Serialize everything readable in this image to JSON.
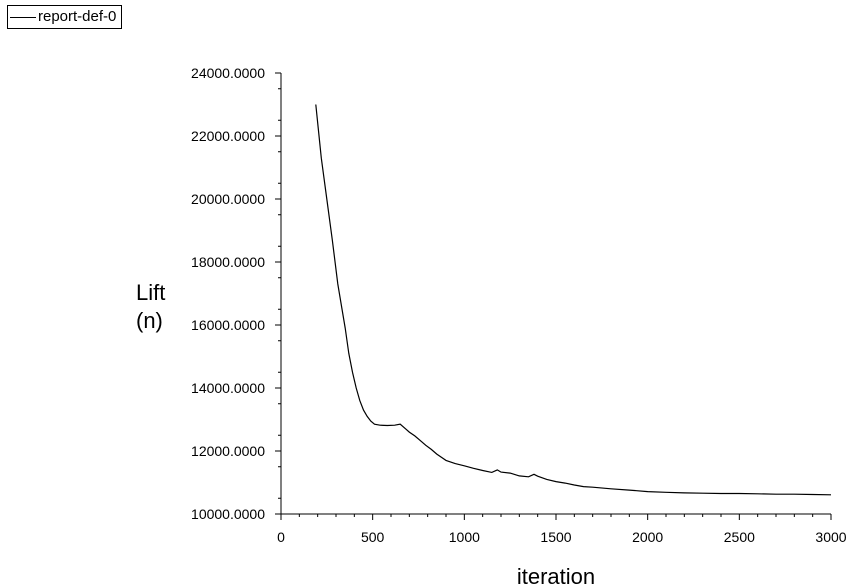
{
  "legend": {
    "label": "report-def-0"
  },
  "chart_data": {
    "type": "line",
    "title": "",
    "xlabel": "iteration",
    "ylabel_lines": [
      "Lift",
      "(n)"
    ],
    "xlim": [
      0,
      3000
    ],
    "ylim": [
      10000,
      24000
    ],
    "x_ticks": [
      0,
      500,
      1000,
      1500,
      2000,
      2500,
      3000
    ],
    "y_ticks": [
      10000,
      12000,
      14000,
      16000,
      18000,
      20000,
      22000,
      24000
    ],
    "x_tick_labels": [
      "0",
      "500",
      "1000",
      "1500",
      "2000",
      "2500",
      "3000"
    ],
    "y_tick_labels": [
      "10000.0000",
      "12000.0000",
      "14000.0000",
      "16000.0000",
      "18000.0000",
      "20000.0000",
      "22000.0000",
      "24000.0000"
    ],
    "grid": false,
    "legend_position": "top-left",
    "series": [
      {
        "name": "report-def-0",
        "color": "#000000",
        "x": [
          190,
          220,
          250,
          280,
          310,
          330,
          350,
          370,
          390,
          410,
          430,
          450,
          470,
          490,
          510,
          540,
          580,
          620,
          650,
          680,
          700,
          730,
          760,
          790,
          820,
          850,
          880,
          900,
          950,
          1000,
          1050,
          1100,
          1150,
          1180,
          1200,
          1250,
          1300,
          1350,
          1380,
          1400,
          1450,
          1500,
          1550,
          1600,
          1650,
          1700,
          1800,
          1900,
          2000,
          2100,
          2200,
          2300,
          2400,
          2500,
          2600,
          2700,
          2800,
          2900,
          3000
        ],
        "y": [
          23000,
          21300,
          20000,
          18700,
          17300,
          16600,
          15900,
          15100,
          14500,
          14000,
          13600,
          13300,
          13100,
          12950,
          12850,
          12820,
          12810,
          12820,
          12850,
          12700,
          12600,
          12480,
          12330,
          12180,
          12050,
          11900,
          11780,
          11700,
          11600,
          11530,
          11450,
          11380,
          11320,
          11400,
          11330,
          11300,
          11210,
          11180,
          11260,
          11200,
          11100,
          11030,
          10980,
          10920,
          10870,
          10850,
          10800,
          10760,
          10710,
          10690,
          10670,
          10660,
          10650,
          10650,
          10640,
          10630,
          10630,
          10620,
          10610
        ]
      }
    ]
  }
}
